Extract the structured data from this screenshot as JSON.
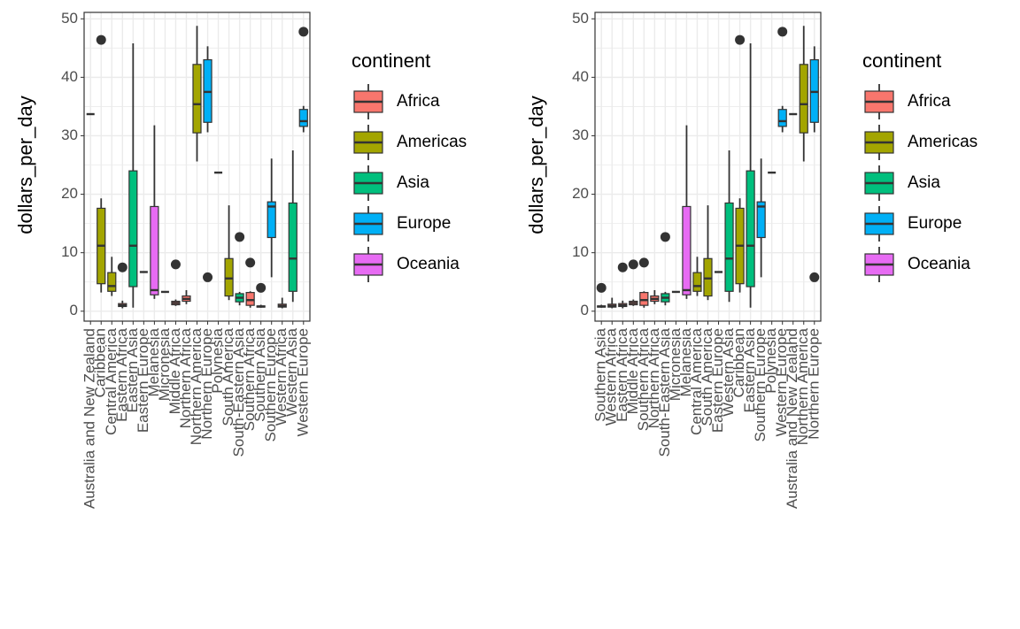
{
  "chart_data": [
    {
      "type": "box",
      "y_label": "dollars_per_day",
      "ylim": [
        -1.7,
        51.1
      ],
      "yticks": [
        0,
        10,
        20,
        30,
        40,
        50
      ],
      "grid": true,
      "legend_title": "continent",
      "series": [
        {
          "name": "Africa",
          "color": "#F8766D"
        },
        {
          "name": "Americas",
          "color": "#A3A500"
        },
        {
          "name": "Asia",
          "color": "#00BF7D"
        },
        {
          "name": "Europe",
          "color": "#00B0F6"
        },
        {
          "name": "Oceania",
          "color": "#E76BF3"
        }
      ],
      "categories": [
        "Australia and New Zealand",
        "Caribbean",
        "Central America",
        "Eastern Africa",
        "Eastern Asia",
        "Eastern Europe",
        "Melanesia",
        "Micronesia",
        "Middle Africa",
        "Northern Africa",
        "Northern America",
        "Northern Europe",
        "Polynesia",
        "South America",
        "South-Eastern Asia",
        "Southern Africa",
        "Southern Asia",
        "Southern Europe",
        "Western Africa",
        "Western Asia",
        "Western Europe"
      ],
      "boxes": [
        {
          "group": "Oceania",
          "min": 33.7,
          "q1": 33.7,
          "median": 33.7,
          "q3": 33.7,
          "max": 33.7,
          "outliers": []
        },
        {
          "group": "Americas",
          "min": 3.2,
          "q1": 4.7,
          "median": 11.2,
          "q3": 17.6,
          "max": 19.3,
          "outliers": [
            46.4
          ]
        },
        {
          "group": "Americas",
          "min": 2.6,
          "q1": 3.4,
          "median": 4.3,
          "q3": 6.6,
          "max": 9.3,
          "outliers": []
        },
        {
          "group": "Africa",
          "min": 0.5,
          "q1": 0.8,
          "median": 1.0,
          "q3": 1.3,
          "max": 1.8,
          "outliers": [
            7.5
          ]
        },
        {
          "group": "Asia",
          "min": 0.6,
          "q1": 4.2,
          "median": 11.2,
          "q3": 24.0,
          "max": 45.8,
          "outliers": []
        },
        {
          "group": "Europe",
          "min": 6.7,
          "q1": 6.7,
          "median": 6.7,
          "q3": 6.7,
          "max": 6.7,
          "outliers": []
        },
        {
          "group": "Oceania",
          "min": 2.1,
          "q1": 2.8,
          "median": 3.6,
          "q3": 17.9,
          "max": 31.8,
          "outliers": []
        },
        {
          "group": "Oceania",
          "min": 3.3,
          "q1": 3.3,
          "median": 3.3,
          "q3": 3.3,
          "max": 3.3,
          "outliers": []
        },
        {
          "group": "Africa",
          "min": 0.9,
          "q1": 1.1,
          "median": 1.4,
          "q3": 1.7,
          "max": 2.0,
          "outliers": [
            8.0
          ]
        },
        {
          "group": "Africa",
          "min": 1.2,
          "q1": 1.7,
          "median": 2.1,
          "q3": 2.6,
          "max": 3.6,
          "outliers": []
        },
        {
          "group": "Americas",
          "min": 25.6,
          "q1": 30.5,
          "median": 35.4,
          "q3": 42.2,
          "max": 48.8,
          "outliers": []
        },
        {
          "group": "Europe",
          "min": 30.6,
          "q1": 32.3,
          "median": 37.5,
          "q3": 43.0,
          "max": 45.3,
          "outliers": [
            5.8
          ]
        },
        {
          "group": "Oceania",
          "min": 23.7,
          "q1": 23.7,
          "median": 23.7,
          "q3": 23.7,
          "max": 23.7,
          "outliers": []
        },
        {
          "group": "Americas",
          "min": 1.9,
          "q1": 2.6,
          "median": 5.6,
          "q3": 9.0,
          "max": 18.1,
          "outliers": []
        },
        {
          "group": "Asia",
          "min": 1.0,
          "q1": 1.6,
          "median": 2.3,
          "q3": 3.0,
          "max": 3.3,
          "outliers": [
            12.7
          ]
        },
        {
          "group": "Africa",
          "min": 0.6,
          "q1": 1.0,
          "median": 1.9,
          "q3": 3.2,
          "max": 3.4,
          "outliers": [
            8.3
          ]
        },
        {
          "group": "Asia",
          "min": 0.6,
          "q1": 0.7,
          "median": 0.8,
          "q3": 0.9,
          "max": 1.1,
          "outliers": [
            4.0
          ]
        },
        {
          "group": "Europe",
          "min": 5.8,
          "q1": 12.6,
          "median": 17.9,
          "q3": 18.7,
          "max": 26.1,
          "outliers": []
        },
        {
          "group": "Africa",
          "min": 0.5,
          "q1": 0.7,
          "median": 0.9,
          "q3": 1.2,
          "max": 2.3,
          "outliers": []
        },
        {
          "group": "Asia",
          "min": 1.6,
          "q1": 3.4,
          "median": 9.0,
          "q3": 18.5,
          "max": 27.5,
          "outliers": []
        },
        {
          "group": "Europe",
          "min": 30.6,
          "q1": 31.6,
          "median": 32.5,
          "q3": 34.5,
          "max": 35.1,
          "outliers": [
            47.8
          ]
        }
      ]
    },
    {
      "type": "box",
      "y_label": "dollars_per_day",
      "ylim": [
        -1.7,
        51.1
      ],
      "yticks": [
        0,
        10,
        20,
        30,
        40,
        50
      ],
      "grid": true,
      "legend_title": "continent",
      "series": [
        {
          "name": "Africa",
          "color": "#F8766D"
        },
        {
          "name": "Americas",
          "color": "#A3A500"
        },
        {
          "name": "Asia",
          "color": "#00BF7D"
        },
        {
          "name": "Europe",
          "color": "#00B0F6"
        },
        {
          "name": "Oceania",
          "color": "#E76BF3"
        }
      ],
      "categories": [
        "Southern Asia",
        "Western Africa",
        "Eastern Africa",
        "Middle Africa",
        "Southern Africa",
        "Northern Africa",
        "South-Eastern Asia",
        "Micronesia",
        "Melanesia",
        "Central America",
        "South America",
        "Eastern Europe",
        "Western Asia",
        "Caribbean",
        "Eastern Asia",
        "Southern Europe",
        "Polynesia",
        "Western Europe",
        "Australia and New Zealand",
        "Northern America",
        "Northern Europe"
      ],
      "boxes": [
        {
          "group": "Asia",
          "min": 0.6,
          "q1": 0.7,
          "median": 0.8,
          "q3": 0.9,
          "max": 1.1,
          "outliers": [
            4.0
          ]
        },
        {
          "group": "Africa",
          "min": 0.5,
          "q1": 0.7,
          "median": 0.9,
          "q3": 1.2,
          "max": 2.3,
          "outliers": []
        },
        {
          "group": "Africa",
          "min": 0.5,
          "q1": 0.8,
          "median": 1.0,
          "q3": 1.3,
          "max": 1.8,
          "outliers": [
            7.5
          ]
        },
        {
          "group": "Africa",
          "min": 0.9,
          "q1": 1.1,
          "median": 1.4,
          "q3": 1.7,
          "max": 2.0,
          "outliers": [
            8.0
          ]
        },
        {
          "group": "Africa",
          "min": 0.6,
          "q1": 1.0,
          "median": 1.9,
          "q3": 3.2,
          "max": 3.4,
          "outliers": [
            8.3
          ]
        },
        {
          "group": "Africa",
          "min": 1.2,
          "q1": 1.7,
          "median": 2.1,
          "q3": 2.6,
          "max": 3.6,
          "outliers": []
        },
        {
          "group": "Asia",
          "min": 1.0,
          "q1": 1.6,
          "median": 2.3,
          "q3": 3.0,
          "max": 3.3,
          "outliers": [
            12.7
          ]
        },
        {
          "group": "Oceania",
          "min": 3.3,
          "q1": 3.3,
          "median": 3.3,
          "q3": 3.3,
          "max": 3.3,
          "outliers": []
        },
        {
          "group": "Oceania",
          "min": 2.1,
          "q1": 2.8,
          "median": 3.6,
          "q3": 17.9,
          "max": 31.8,
          "outliers": []
        },
        {
          "group": "Americas",
          "min": 2.6,
          "q1": 3.4,
          "median": 4.3,
          "q3": 6.6,
          "max": 9.3,
          "outliers": []
        },
        {
          "group": "Americas",
          "min": 1.9,
          "q1": 2.6,
          "median": 5.6,
          "q3": 9.0,
          "max": 18.1,
          "outliers": []
        },
        {
          "group": "Europe",
          "min": 6.7,
          "q1": 6.7,
          "median": 6.7,
          "q3": 6.7,
          "max": 6.7,
          "outliers": []
        },
        {
          "group": "Asia",
          "min": 1.6,
          "q1": 3.4,
          "median": 9.0,
          "q3": 18.5,
          "max": 27.5,
          "outliers": []
        },
        {
          "group": "Americas",
          "min": 3.2,
          "q1": 4.7,
          "median": 11.2,
          "q3": 17.6,
          "max": 19.3,
          "outliers": [
            46.4
          ]
        },
        {
          "group": "Asia",
          "min": 0.6,
          "q1": 4.2,
          "median": 11.2,
          "q3": 24.0,
          "max": 45.8,
          "outliers": []
        },
        {
          "group": "Europe",
          "min": 5.8,
          "q1": 12.6,
          "median": 17.9,
          "q3": 18.7,
          "max": 26.1,
          "outliers": []
        },
        {
          "group": "Oceania",
          "min": 23.7,
          "q1": 23.7,
          "median": 23.7,
          "q3": 23.7,
          "max": 23.7,
          "outliers": []
        },
        {
          "group": "Europe",
          "min": 30.6,
          "q1": 31.6,
          "median": 32.5,
          "q3": 34.5,
          "max": 35.1,
          "outliers": [
            47.8
          ]
        },
        {
          "group": "Oceania",
          "min": 33.7,
          "q1": 33.7,
          "median": 33.7,
          "q3": 33.7,
          "max": 33.7,
          "outliers": []
        },
        {
          "group": "Americas",
          "min": 25.6,
          "q1": 30.5,
          "median": 35.4,
          "q3": 42.2,
          "max": 48.8,
          "outliers": []
        },
        {
          "group": "Europe",
          "min": 30.6,
          "q1": 32.3,
          "median": 37.5,
          "q3": 43.0,
          "max": 45.3,
          "outliers": [
            5.8
          ]
        }
      ]
    }
  ]
}
